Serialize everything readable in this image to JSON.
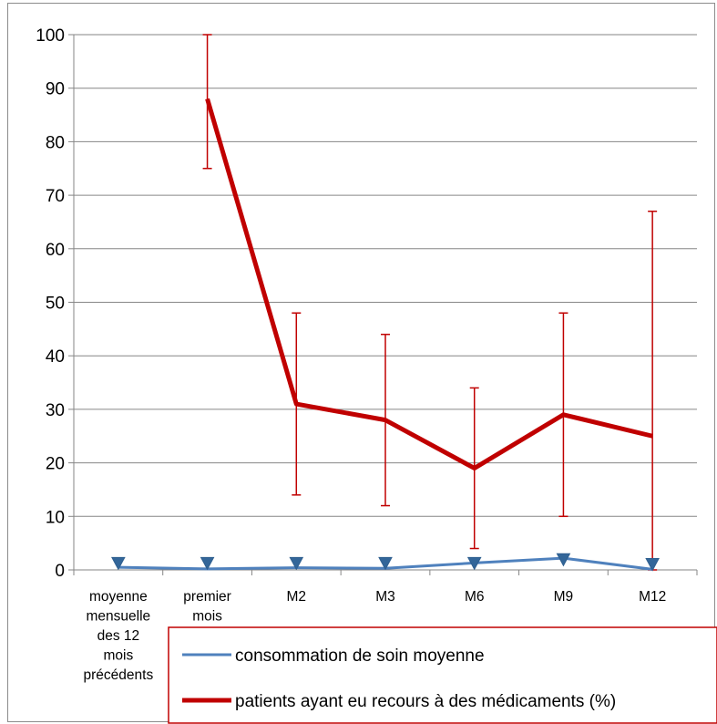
{
  "chart_data": {
    "type": "line",
    "categories": [
      [
        "moyenne",
        "mensuelle",
        "des 12",
        "mois",
        "précédents"
      ],
      [
        "premier",
        "mois"
      ],
      [
        "M2"
      ],
      [
        "M3"
      ],
      [
        "M6"
      ],
      [
        "M9"
      ],
      [
        "M12"
      ]
    ],
    "ylim": [
      0,
      100
    ],
    "yticks": [
      0,
      10,
      20,
      30,
      40,
      50,
      60,
      70,
      80,
      90,
      100
    ],
    "grid": true,
    "legend_position": "bottom-right",
    "series": [
      {
        "name": "consommation de soin moyenne",
        "color": "#4f81bd",
        "values": [
          0.5,
          0.2,
          0.4,
          0.3,
          1.3,
          2.2,
          0.1
        ],
        "marker_values": [
          1.3,
          1.3,
          1.3,
          1.3,
          1.3,
          2.0,
          1.1
        ],
        "marker": "triangle-down"
      },
      {
        "name": "patients ayant eu recours à des médicaments (%)",
        "color": "#c00000",
        "values": [
          null,
          88,
          31,
          28,
          19,
          29,
          25
        ],
        "error_low": [
          null,
          75,
          14,
          12,
          4,
          10,
          0
        ],
        "error_high": [
          null,
          100,
          48,
          44,
          34,
          48,
          67
        ],
        "error_color": "#c00000"
      }
    ]
  }
}
